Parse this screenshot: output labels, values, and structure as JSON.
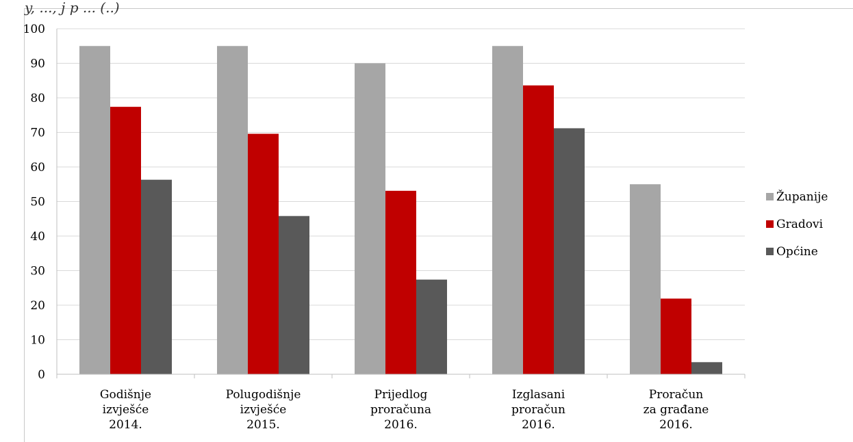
{
  "header": {
    "clipped_title": "y, ..., j p ... (..)"
  },
  "colors": {
    "zupanije": "#a6a6a6",
    "gradovi": "#c00000",
    "opcine": "#595959",
    "grid": "#d9d9d9",
    "axis": "#bfbfbf"
  },
  "chart_data": {
    "type": "bar",
    "categories": [
      "Godišnje\nizvješće\n2014.",
      "Polugodišnje\nizvješće\n2015.",
      "Prijedlog\nproračuna\n2016.",
      "Izglasani\nproračun\n2016.",
      "Proračun\nza građane\n2016."
    ],
    "series": [
      {
        "name": "Županije",
        "values": [
          95,
          95,
          90,
          95,
          55
        ]
      },
      {
        "name": "Gradovi",
        "values": [
          77.4,
          69.6,
          53.1,
          83.6,
          21.9
        ]
      },
      {
        "name": "Općine",
        "values": [
          56.3,
          45.8,
          27.4,
          71.2,
          3.5
        ]
      }
    ],
    "ylim": [
      0,
      100
    ],
    "yticks": [
      "0",
      "10",
      "20",
      "30",
      "40",
      "50",
      "60",
      "70",
      "80",
      "90",
      "100"
    ],
    "xlabel": "",
    "ylabel": "",
    "grid": true,
    "legend_position": "right"
  }
}
